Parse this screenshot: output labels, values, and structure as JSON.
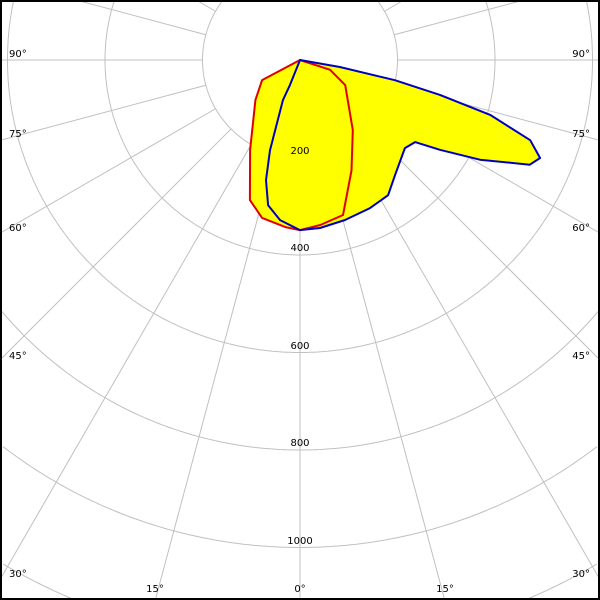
{
  "chart_data": {
    "type": "polar",
    "angle_unit": "degrees",
    "zero_direction": "down",
    "radial_ticks": [
      200,
      400,
      600,
      800,
      1000
    ],
    "radial_tick_labels": [
      "200",
      "400",
      "600",
      "800",
      "1000"
    ],
    "angle_tick_labels": [
      "0°",
      "15°",
      "30°",
      "45°",
      "60°",
      "75°",
      "90°"
    ],
    "grid": true,
    "fill_color": "#ffff00",
    "series": [
      {
        "color": "#e00000",
        "points": [
          [
            -90,
            0
          ],
          [
            -62,
            88
          ],
          [
            -48,
            123
          ],
          [
            -29,
            211
          ],
          [
            -19.7,
            305
          ],
          [
            -13.5,
            333
          ],
          [
            -5,
            344
          ],
          [
            0,
            349
          ],
          [
            7,
            341
          ],
          [
            15.5,
            330
          ],
          [
            25,
            250
          ],
          [
            37,
            180
          ],
          [
            61,
            106
          ],
          [
            72,
            65
          ],
          [
            90,
            0
          ]
        ]
      },
      {
        "color": "#0000c0",
        "points": [
          [
            90,
            0
          ],
          [
            -21.8,
            55
          ],
          [
            -23,
            89
          ],
          [
            -18.4,
            195
          ],
          [
            -15.8,
            256
          ],
          [
            -12.4,
            305
          ],
          [
            -7.1,
            331
          ],
          [
            0,
            349
          ],
          [
            6.8,
            347
          ],
          [
            15.7,
            341
          ],
          [
            25.3,
            336
          ],
          [
            33.1,
            331
          ],
          [
            39.6,
            306
          ],
          [
            50,
            281
          ],
          [
            54.5,
            290
          ],
          [
            57.3,
            341
          ],
          [
            61,
            422
          ],
          [
            65.5,
            518
          ],
          [
            67.8,
            532
          ],
          [
            70.8,
            500
          ],
          [
            73.9,
            406
          ],
          [
            76,
            296
          ],
          [
            78,
            199
          ],
          [
            80,
            83
          ],
          [
            90,
            0
          ]
        ]
      }
    ]
  }
}
